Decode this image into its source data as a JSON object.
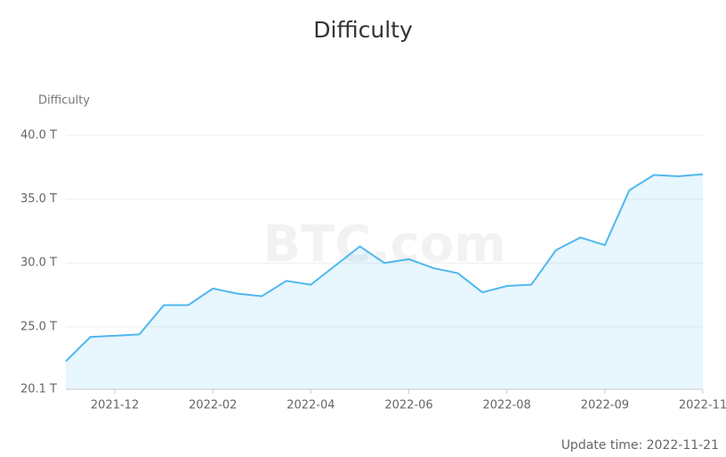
{
  "chart_data": {
    "type": "area",
    "title": "Difficulty",
    "y_label": "Difficulty",
    "watermark": "BTC.com",
    "footer": "Update time: 2022-11-21",
    "categories": [
      null,
      null,
      "2021-12",
      null,
      null,
      null,
      "2022-02",
      null,
      null,
      null,
      "2022-04",
      null,
      null,
      null,
      "2022-06",
      null,
      null,
      null,
      "2022-08",
      null,
      null,
      null,
      "2022-09",
      null,
      null,
      null,
      "2022-11"
    ],
    "series": [
      {
        "name": "Difficulty",
        "color": "#4fb8ee",
        "values": [
          22.3,
          24.2,
          24.3,
          24.4,
          26.7,
          26.7,
          28.0,
          27.6,
          27.4,
          28.6,
          28.3,
          29.8,
          31.3,
          30.0,
          30.3,
          29.6,
          29.2,
          27.7,
          28.2,
          28.3,
          31.0,
          32.0,
          31.4,
          35.7,
          36.9,
          36.8,
          36.95
        ]
      }
    ],
    "ylim": [
      20.1,
      40.0
    ],
    "yticks": [
      {
        "value": 20.1,
        "label": "20.1 T"
      },
      {
        "value": 25.0,
        "label": "25.0 T"
      },
      {
        "value": 30.0,
        "label": "30.0 T"
      },
      {
        "value": 35.0,
        "label": "35.0 T"
      },
      {
        "value": 40.0,
        "label": "40.0 T"
      }
    ],
    "grid": true
  }
}
